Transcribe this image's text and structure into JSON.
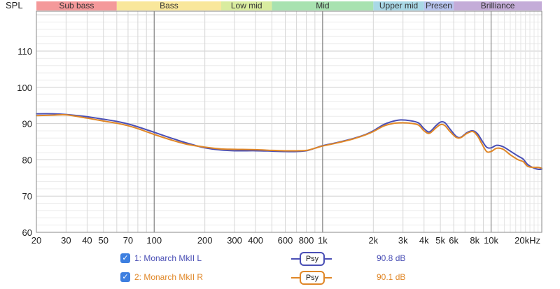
{
  "chart_data": {
    "type": "line",
    "ylabel": "SPL",
    "xscale": "log",
    "xlim": [
      20,
      20000
    ],
    "ylim": [
      60,
      121
    ],
    "yticks": [
      60,
      70,
      80,
      90,
      100,
      110
    ],
    "xticks": [
      {
        "v": 20,
        "label": "20"
      },
      {
        "v": 30,
        "label": "30"
      },
      {
        "v": 40,
        "label": "40"
      },
      {
        "v": 50,
        "label": "50"
      },
      {
        "v": 70,
        "label": "70"
      },
      {
        "v": 100,
        "label": "100"
      },
      {
        "v": 200,
        "label": "200"
      },
      {
        "v": 300,
        "label": "300"
      },
      {
        "v": 400,
        "label": "400"
      },
      {
        "v": 600,
        "label": "600"
      },
      {
        "v": 800,
        "label": "800"
      },
      {
        "v": 1000,
        "label": "1k"
      },
      {
        "v": 2000,
        "label": "2k"
      },
      {
        "v": 3000,
        "label": "3k"
      },
      {
        "v": 4000,
        "label": "4k"
      },
      {
        "v": 5000,
        "label": "5k"
      },
      {
        "v": 6000,
        "label": "6k"
      },
      {
        "v": 8000,
        "label": "8k"
      },
      {
        "v": 10000,
        "label": "10k"
      },
      {
        "v": 20000,
        "label": "20kHz"
      }
    ],
    "bands": [
      {
        "label": "Sub bass",
        "from": 20,
        "to": 60,
        "color": "#f4999a"
      },
      {
        "label": "Bass",
        "from": 60,
        "to": 250,
        "color": "#f9e79b"
      },
      {
        "label": "Low mid",
        "from": 250,
        "to": 500,
        "color": "#d9ec9f"
      },
      {
        "label": "Mid",
        "from": 500,
        "to": 2000,
        "color": "#a8e2b0"
      },
      {
        "label": "Upper mid",
        "from": 2000,
        "to": 4000,
        "color": "#a9d8e6"
      },
      {
        "label": "Presen",
        "from": 4000,
        "to": 6000,
        "color": "#b7c4ee"
      },
      {
        "label": "Brilliance",
        "from": 6000,
        "to": 20000,
        "color": "#c4acd8"
      }
    ],
    "series": [
      {
        "name": "1: Monarch MkII L",
        "color": "#4a4fb5",
        "value_label": "90.8 dB",
        "points": [
          [
            20,
            92.7
          ],
          [
            25,
            92.7
          ],
          [
            30,
            92.5
          ],
          [
            40,
            91.9
          ],
          [
            50,
            91.2
          ],
          [
            60,
            90.6
          ],
          [
            70,
            89.9
          ],
          [
            80,
            89.1
          ],
          [
            100,
            87.6
          ],
          [
            130,
            85.8
          ],
          [
            160,
            84.5
          ],
          [
            200,
            83.3
          ],
          [
            250,
            82.7
          ],
          [
            300,
            82.5
          ],
          [
            400,
            82.5
          ],
          [
            500,
            82.4
          ],
          [
            600,
            82.3
          ],
          [
            700,
            82.3
          ],
          [
            800,
            82.5
          ],
          [
            900,
            83.2
          ],
          [
            1000,
            83.9
          ],
          [
            1200,
            84.7
          ],
          [
            1500,
            85.8
          ],
          [
            1800,
            87.0
          ],
          [
            2000,
            88.0
          ],
          [
            2300,
            89.7
          ],
          [
            2600,
            90.6
          ],
          [
            2900,
            91.0
          ],
          [
            3300,
            90.8
          ],
          [
            3700,
            90.2
          ],
          [
            4000,
            88.6
          ],
          [
            4300,
            87.7
          ],
          [
            4700,
            89.4
          ],
          [
            5000,
            90.4
          ],
          [
            5300,
            90.3
          ],
          [
            5700,
            88.5
          ],
          [
            6200,
            86.5
          ],
          [
            6600,
            86.2
          ],
          [
            7200,
            87.5
          ],
          [
            7800,
            88.0
          ],
          [
            8300,
            87.2
          ],
          [
            8800,
            85.4
          ],
          [
            9400,
            83.5
          ],
          [
            10000,
            83.3
          ],
          [
            10800,
            84.0
          ],
          [
            11800,
            83.6
          ],
          [
            13000,
            82.4
          ],
          [
            14500,
            81.0
          ],
          [
            15500,
            80.2
          ],
          [
            16500,
            78.7
          ],
          [
            18000,
            77.7
          ],
          [
            19000,
            77.4
          ],
          [
            20000,
            77.4
          ]
        ]
      },
      {
        "name": "2: Monarch MkII R",
        "color": "#e08727",
        "value_label": "90.1 dB",
        "points": [
          [
            20,
            92.2
          ],
          [
            25,
            92.3
          ],
          [
            30,
            92.4
          ],
          [
            40,
            91.5
          ],
          [
            50,
            90.7
          ],
          [
            60,
            90.1
          ],
          [
            70,
            89.4
          ],
          [
            80,
            88.6
          ],
          [
            100,
            87.0
          ],
          [
            130,
            85.3
          ],
          [
            160,
            84.2
          ],
          [
            200,
            83.5
          ],
          [
            250,
            83.0
          ],
          [
            300,
            82.9
          ],
          [
            400,
            82.8
          ],
          [
            500,
            82.6
          ],
          [
            600,
            82.5
          ],
          [
            700,
            82.5
          ],
          [
            800,
            82.6
          ],
          [
            900,
            83.2
          ],
          [
            1000,
            83.8
          ],
          [
            1200,
            84.6
          ],
          [
            1500,
            85.7
          ],
          [
            1800,
            86.9
          ],
          [
            2000,
            87.8
          ],
          [
            2300,
            89.3
          ],
          [
            2600,
            90.0
          ],
          [
            2900,
            90.2
          ],
          [
            3300,
            90.1
          ],
          [
            3700,
            89.6
          ],
          [
            4000,
            88.0
          ],
          [
            4300,
            87.3
          ],
          [
            4700,
            88.8
          ],
          [
            5000,
            89.7
          ],
          [
            5300,
            89.5
          ],
          [
            5700,
            87.8
          ],
          [
            6200,
            86.2
          ],
          [
            6600,
            86.1
          ],
          [
            7200,
            87.3
          ],
          [
            7800,
            87.8
          ],
          [
            8300,
            86.6
          ],
          [
            8800,
            84.5
          ],
          [
            9400,
            82.3
          ],
          [
            10000,
            82.3
          ],
          [
            10800,
            83.2
          ],
          [
            11800,
            82.9
          ],
          [
            13000,
            81.4
          ],
          [
            14500,
            80.0
          ],
          [
            15500,
            79.5
          ],
          [
            16500,
            78.2
          ],
          [
            18000,
            77.9
          ],
          [
            19000,
            77.9
          ],
          [
            20000,
            77.7
          ]
        ]
      }
    ]
  },
  "legend": {
    "check_glyph": "✓",
    "psy_label": "Psy"
  }
}
